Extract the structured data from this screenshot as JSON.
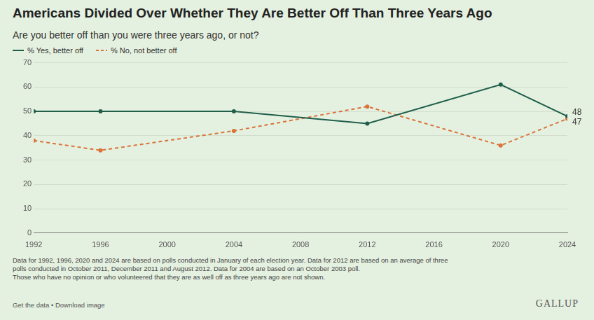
{
  "chart_data": {
    "type": "line",
    "title": "Americans Divided Over Whether They Are Better Off Than Three Years Ago",
    "subtitle": "Are you better off than you were three years ago, or not?",
    "x": [
      1992,
      1996,
      2004,
      2012,
      2020,
      2024
    ],
    "series": [
      {
        "name": "% Yes, better off",
        "color": "#1f5e4b",
        "marker": "circle",
        "line_style": "solid",
        "values": [
          50,
          50,
          50,
          45,
          61,
          48
        ],
        "value_labels": [
          null,
          null,
          null,
          null,
          null,
          "48"
        ]
      },
      {
        "name": "% No, not better off",
        "color": "#d9733a",
        "marker": "circle",
        "line_style": "dashed",
        "values": [
          38,
          34,
          42,
          52,
          36,
          47
        ],
        "value_labels": [
          null,
          null,
          null,
          null,
          null,
          "47"
        ]
      }
    ],
    "xlim": [
      1992,
      2024
    ],
    "xticks": [
      1992,
      1996,
      2000,
      2004,
      2008,
      2012,
      2016,
      2020,
      2024
    ],
    "ylim": [
      0,
      70
    ],
    "yticks": [
      0,
      10,
      20,
      30,
      40,
      50,
      60,
      70
    ],
    "grid": true,
    "data_labels": true,
    "footnote": [
      "Data for 1992, 1996, 2020 and 2024 are based on polls conducted in January of each election year. Data for 2012 are based on an average of three",
      "polls conducted in October 2011, December 2011 and August 2012. Data for 2004 are based on an October 2003 poll.",
      "Those who have no opinion or who volunteered that they are as well off as three years ago are not shown."
    ],
    "links": "Get the data • Download image",
    "source": "GALLUP"
  }
}
